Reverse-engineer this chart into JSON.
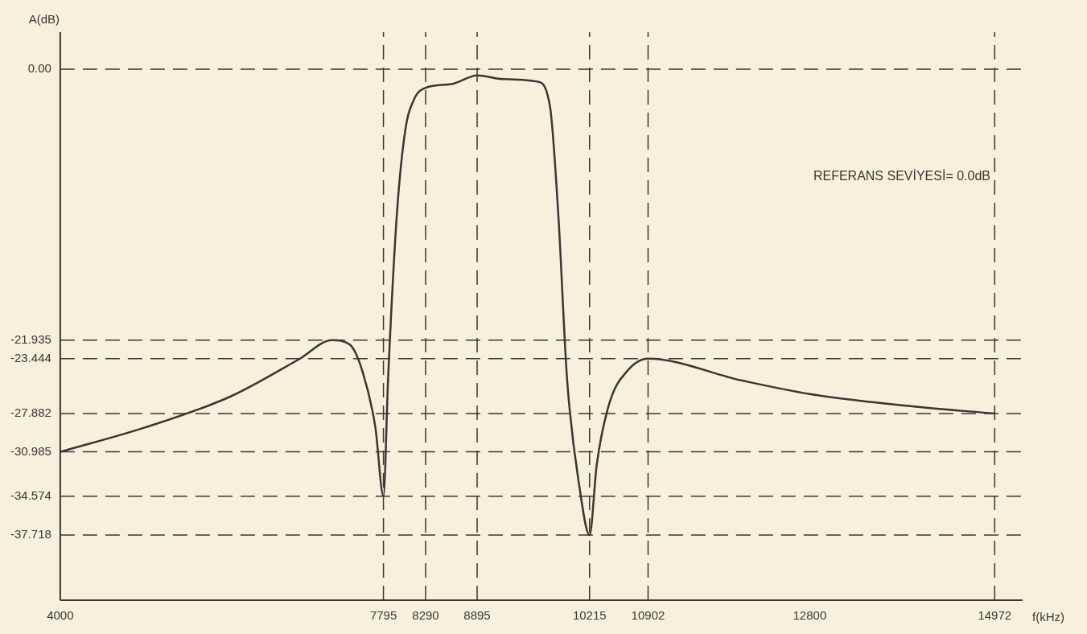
{
  "chart_data": {
    "type": "line",
    "xlabel": "f(kHz)",
    "ylabel": "A(dB)",
    "annotations": [
      "REFERANS SEVİYESİ= 0.0dB"
    ],
    "x": [
      4000,
      5000,
      6000,
      6800,
      7193,
      7400,
      7550,
      7700,
      7795,
      7850,
      7950,
      8050,
      8150,
      8290,
      8600,
      8895,
      9200,
      9600,
      9750,
      9850,
      9950,
      10100,
      10215,
      10300,
      10450,
      10650,
      10902,
      12000,
      12800,
      14000,
      14972
    ],
    "series": [
      {
        "color": "#3a3632",
        "values": [
          -30.985,
          -29.0,
          -26.5,
          -23.5,
          -21.935,
          -22.3,
          -24.5,
          -29.0,
          -34.574,
          -25.0,
          -12.0,
          -5.0,
          -2.5,
          -1.5,
          -1.2,
          -0.5,
          -0.8,
          -1.0,
          -3.0,
          -12.0,
          -25.0,
          -34.0,
          -37.718,
          -32.0,
          -27.0,
          -24.5,
          -23.444,
          -25.2,
          -26.3,
          -27.3,
          -27.882
        ]
      }
    ],
    "xlim": [
      4000,
      15300
    ],
    "xticks": [
      4000,
      7795,
      8290,
      8895,
      10215,
      10902,
      12800,
      14972
    ],
    "ylim": [
      -43,
      3
    ],
    "yticks": [
      {
        "value": 0,
        "label": "0.00"
      },
      -21.935,
      -23.444,
      -27.882,
      -30.985,
      -34.574,
      -37.718
    ],
    "ref_lines": [
      {
        "axis": "y",
        "value": 0,
        "line_style": "dashed",
        "color": "#3a3632"
      },
      {
        "axis": "y",
        "value": -21.935,
        "line_style": "dashed",
        "color": "#3a3632"
      },
      {
        "axis": "y",
        "value": -23.444,
        "line_style": "dashed",
        "color": "#3a3632"
      },
      {
        "axis": "y",
        "value": -27.882,
        "line_style": "dashed",
        "color": "#3a3632"
      },
      {
        "axis": "y",
        "value": -30.985,
        "line_style": "dashed",
        "color": "#3a3632"
      },
      {
        "axis": "y",
        "value": -34.574,
        "line_style": "dashed",
        "color": "#3a3632"
      },
      {
        "axis": "y",
        "value": -37.718,
        "line_style": "dashed",
        "color": "#3a3632"
      },
      {
        "axis": "x",
        "value": 7795,
        "line_style": "dashed",
        "color": "#3a3632"
      },
      {
        "axis": "x",
        "value": 8290,
        "line_style": "dashed",
        "color": "#3a3632"
      },
      {
        "axis": "x",
        "value": 8895,
        "line_style": "dashed",
        "color": "#3a3632"
      },
      {
        "axis": "x",
        "value": 10215,
        "line_style": "dashed",
        "color": "#3a3632"
      },
      {
        "axis": "x",
        "value": 10902,
        "line_style": "dashed",
        "color": "#3a3632"
      },
      {
        "axis": "x",
        "value": 14972,
        "line_style": "dashed",
        "color": "#3a3632"
      }
    ],
    "grid": false,
    "legend": false,
    "marker": "none",
    "line_style": "solid"
  }
}
